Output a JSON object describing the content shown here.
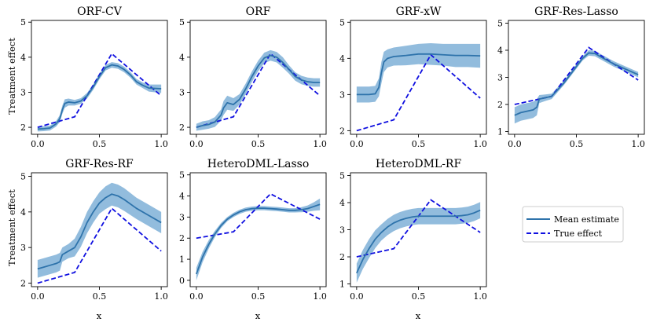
{
  "chart_data": {
    "type": "line",
    "ylabel": "Treatment effect",
    "xlabel": "x",
    "x_ticks": [
      0.0,
      0.5,
      1.0
    ],
    "x_tick_labels": [
      "0.0",
      "0.5",
      "1.0"
    ],
    "legend": {
      "placement": "right",
      "mean_label": "Mean estimate",
      "true_label": "True effect"
    },
    "colors": {
      "mean": "#2e73ab",
      "band": "#7fb0d7",
      "truth": "#1010e0",
      "axis": "#000000"
    },
    "true_effect": {
      "x": [
        0,
        0.3,
        0.6,
        1.0
      ],
      "y": [
        2.0,
        2.3,
        4.1,
        2.9
      ]
    },
    "panels": [
      {
        "id": "orf-cv",
        "title": "ORF-CV",
        "ylim": [
          1.8,
          5.05
        ],
        "y_ticks": [
          2,
          3,
          4,
          5
        ],
        "y_tick_labels": [
          "2",
          "3",
          "4",
          "5"
        ],
        "mean": {
          "x": [
            0,
            0.05,
            0.1,
            0.15,
            0.18,
            0.2,
            0.22,
            0.25,
            0.3,
            0.35,
            0.4,
            0.45,
            0.5,
            0.55,
            0.6,
            0.65,
            0.7,
            0.75,
            0.8,
            0.85,
            0.9,
            1.0
          ],
          "y": [
            1.95,
            1.96,
            1.98,
            2.1,
            2.25,
            2.5,
            2.68,
            2.72,
            2.7,
            2.75,
            2.9,
            3.15,
            3.45,
            3.7,
            3.78,
            3.75,
            3.65,
            3.5,
            3.3,
            3.2,
            3.12,
            3.1
          ]
        },
        "band": [
          0.07,
          0.07,
          0.07,
          0.08,
          0.1,
          0.12,
          0.12,
          0.1,
          0.08,
          0.08,
          0.08,
          0.08,
          0.08,
          0.08,
          0.08,
          0.08,
          0.08,
          0.08,
          0.08,
          0.08,
          0.1,
          0.12
        ]
      },
      {
        "id": "orf",
        "title": "ORF",
        "ylim": [
          1.8,
          5.05
        ],
        "y_ticks": [
          2,
          3,
          4,
          5
        ],
        "y_tick_labels": [
          "2",
          "3",
          "4",
          "5"
        ],
        "mean": {
          "x": [
            0,
            0.05,
            0.1,
            0.15,
            0.2,
            0.22,
            0.25,
            0.3,
            0.35,
            0.4,
            0.45,
            0.5,
            0.55,
            0.6,
            0.65,
            0.7,
            0.75,
            0.8,
            0.85,
            0.9,
            0.95,
            1.0
          ],
          "y": [
            2.0,
            2.05,
            2.08,
            2.15,
            2.35,
            2.55,
            2.7,
            2.65,
            2.8,
            3.1,
            3.45,
            3.75,
            3.98,
            4.05,
            4.0,
            3.85,
            3.65,
            3.45,
            3.35,
            3.3,
            3.28,
            3.28
          ]
        },
        "band": [
          0.1,
          0.12,
          0.12,
          0.14,
          0.16,
          0.2,
          0.2,
          0.18,
          0.15,
          0.15,
          0.15,
          0.15,
          0.15,
          0.15,
          0.15,
          0.15,
          0.12,
          0.12,
          0.12,
          0.12,
          0.12,
          0.12
        ]
      },
      {
        "id": "grf-xw",
        "title": "GRF-xW",
        "ylim": [
          1.9,
          5.05
        ],
        "y_ticks": [
          2,
          3,
          4,
          5
        ],
        "y_tick_labels": [
          "2",
          "3",
          "4",
          "5"
        ],
        "mean": {
          "x": [
            0,
            0.1,
            0.15,
            0.18,
            0.2,
            0.22,
            0.25,
            0.3,
            0.4,
            0.5,
            0.6,
            0.7,
            0.8,
            0.9,
            1.0
          ],
          "y": [
            3.0,
            3.0,
            3.02,
            3.2,
            3.6,
            3.9,
            4.0,
            4.05,
            4.08,
            4.12,
            4.12,
            4.1,
            4.08,
            4.08,
            4.07
          ]
        },
        "band": [
          0.22,
          0.22,
          0.22,
          0.25,
          0.3,
          0.28,
          0.25,
          0.25,
          0.27,
          0.28,
          0.3,
          0.3,
          0.32,
          0.32,
          0.33
        ]
      },
      {
        "id": "grf-res-lasso",
        "title": "GRF-Res-Lasso",
        "ylim": [
          0.9,
          5.1
        ],
        "y_ticks": [
          1,
          2,
          3,
          4,
          5
        ],
        "y_tick_labels": [
          "1",
          "2",
          "3",
          "4",
          "5"
        ],
        "mean": {
          "x": [
            0,
            0.05,
            0.1,
            0.15,
            0.18,
            0.2,
            0.25,
            0.3,
            0.4,
            0.5,
            0.55,
            0.6,
            0.65,
            0.7,
            0.8,
            0.9,
            1.0
          ],
          "y": [
            1.6,
            1.7,
            1.75,
            1.8,
            1.9,
            2.2,
            2.25,
            2.3,
            2.8,
            3.4,
            3.7,
            3.9,
            3.88,
            3.75,
            3.5,
            3.3,
            3.1
          ]
        },
        "band": [
          0.3,
          0.3,
          0.3,
          0.3,
          0.3,
          0.15,
          0.12,
          0.1,
          0.08,
          0.08,
          0.08,
          0.1,
          0.1,
          0.1,
          0.1,
          0.1,
          0.1
        ]
      },
      {
        "id": "grf-res-rf",
        "title": "GRF-Res-RF",
        "ylim": [
          1.9,
          5.1
        ],
        "y_ticks": [
          2,
          3,
          4,
          5
        ],
        "y_tick_labels": [
          "2",
          "3",
          "4",
          "5"
        ],
        "mean": {
          "x": [
            0,
            0.05,
            0.1,
            0.15,
            0.18,
            0.2,
            0.25,
            0.3,
            0.35,
            0.4,
            0.45,
            0.5,
            0.55,
            0.6,
            0.65,
            0.7,
            0.8,
            0.9,
            1.0
          ],
          "y": [
            2.4,
            2.45,
            2.5,
            2.55,
            2.6,
            2.8,
            2.9,
            3.0,
            3.3,
            3.7,
            4.0,
            4.25,
            4.4,
            4.5,
            4.45,
            4.35,
            4.1,
            3.9,
            3.7
          ]
        },
        "band": [
          0.25,
          0.25,
          0.25,
          0.25,
          0.25,
          0.2,
          0.2,
          0.25,
          0.28,
          0.3,
          0.3,
          0.3,
          0.32,
          0.32,
          0.32,
          0.32,
          0.3,
          0.3,
          0.3
        ]
      },
      {
        "id": "heterodml-lasso",
        "title": "HeteroDML-Lasso",
        "ylim": [
          -0.3,
          5.1
        ],
        "y_ticks": [
          0,
          1,
          2,
          3,
          4,
          5
        ],
        "y_tick_labels": [
          "0",
          "1",
          "2",
          "3",
          "4",
          "5"
        ],
        "mean": {
          "x": [
            0,
            0.05,
            0.1,
            0.15,
            0.2,
            0.25,
            0.3,
            0.35,
            0.4,
            0.45,
            0.5,
            0.55,
            0.6,
            0.65,
            0.7,
            0.75,
            0.8,
            0.85,
            0.9,
            0.95,
            1.0
          ],
          "y": [
            0.3,
            1.1,
            1.7,
            2.2,
            2.6,
            2.9,
            3.1,
            3.25,
            3.35,
            3.4,
            3.42,
            3.42,
            3.4,
            3.38,
            3.35,
            3.32,
            3.32,
            3.35,
            3.4,
            3.5,
            3.6
          ]
        },
        "band": [
          0.3,
          0.25,
          0.2,
          0.15,
          0.12,
          0.1,
          0.1,
          0.1,
          0.1,
          0.1,
          0.1,
          0.1,
          0.1,
          0.1,
          0.1,
          0.1,
          0.1,
          0.12,
          0.15,
          0.2,
          0.28
        ]
      },
      {
        "id": "heterodml-rf",
        "title": "HeteroDML-RF",
        "ylim": [
          0.9,
          5.1
        ],
        "y_ticks": [
          1,
          2,
          3,
          4,
          5
        ],
        "y_tick_labels": [
          "1",
          "2",
          "3",
          "4",
          "5"
        ],
        "mean": {
          "x": [
            0,
            0.05,
            0.1,
            0.15,
            0.2,
            0.25,
            0.3,
            0.35,
            0.4,
            0.45,
            0.5,
            0.55,
            0.6,
            0.65,
            0.7,
            0.75,
            0.8,
            0.85,
            0.9,
            0.95,
            1.0
          ],
          "y": [
            1.4,
            1.9,
            2.3,
            2.65,
            2.9,
            3.1,
            3.25,
            3.35,
            3.42,
            3.47,
            3.5,
            3.5,
            3.5,
            3.5,
            3.5,
            3.5,
            3.5,
            3.52,
            3.55,
            3.62,
            3.72
          ]
        },
        "band": [
          0.35,
          0.35,
          0.35,
          0.33,
          0.3,
          0.3,
          0.3,
          0.3,
          0.3,
          0.3,
          0.3,
          0.3,
          0.3,
          0.3,
          0.3,
          0.3,
          0.3,
          0.3,
          0.3,
          0.3,
          0.3
        ]
      }
    ]
  }
}
